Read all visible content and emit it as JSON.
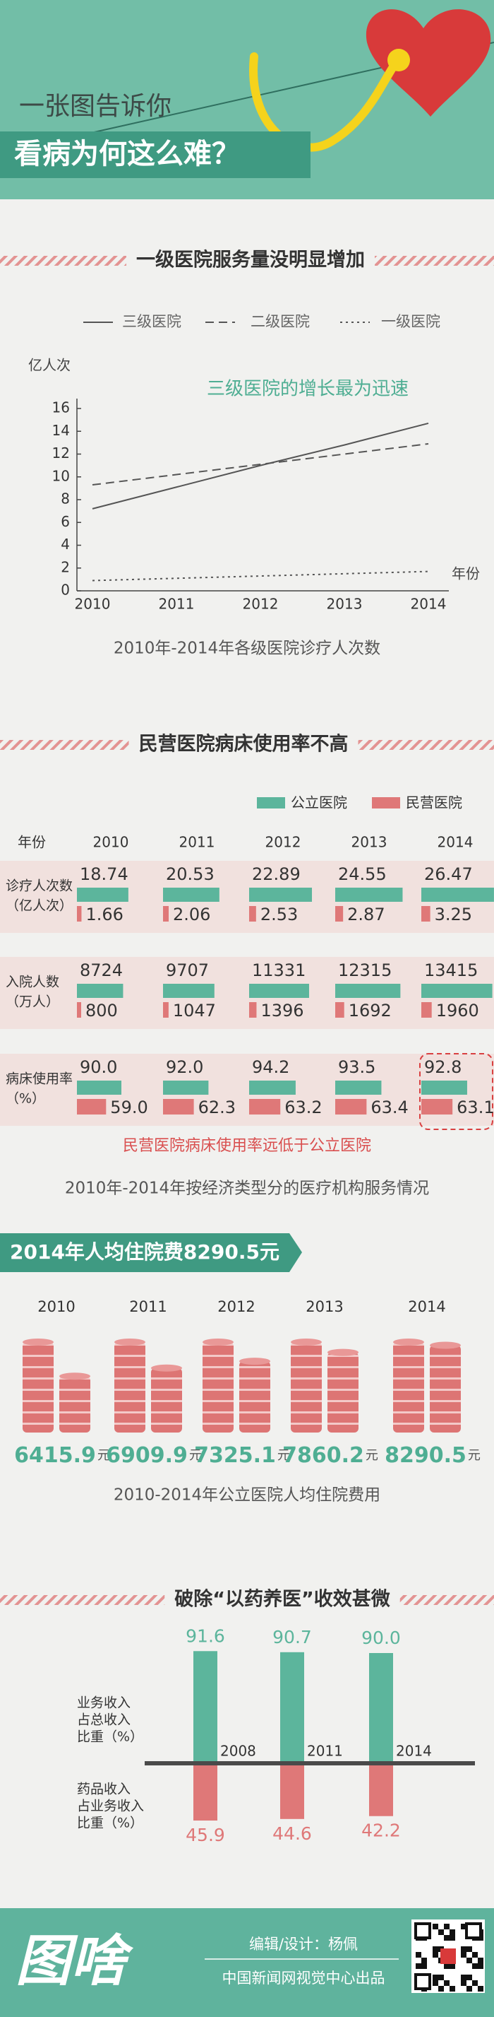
{
  "header": {
    "kicker": "一张图告诉你",
    "title": "看病为何这么难？"
  },
  "chart_data": [
    {
      "type": "line",
      "title": "一级医院服务量没明显增加",
      "y_label": "亿人次",
      "x_label": "年份",
      "annotation": "三级医院的增长最为迅速",
      "caption": "2010年-2014年各级医院诊疗人次数",
      "categories": [
        "2010",
        "2011",
        "2012",
        "2013",
        "2014"
      ],
      "series": [
        {
          "name": "三级医院",
          "color": "#555555",
          "dash": "solid",
          "values": [
            7.2,
            9.1,
            11.0,
            12.8,
            14.7
          ]
        },
        {
          "name": "二级医院",
          "color": "#555555",
          "dash": "dashed",
          "values": [
            9.3,
            10.2,
            11.1,
            12.0,
            12.9
          ]
        },
        {
          "name": "一级医院",
          "color": "#555555",
          "dash": "dotted",
          "values": [
            0.9,
            1.1,
            1.3,
            1.5,
            1.7
          ]
        }
      ],
      "ylim": [
        0,
        16
      ],
      "yticks": [
        0,
        2,
        4,
        6,
        8,
        10,
        12,
        14,
        16
      ]
    },
    {
      "type": "bar-table",
      "title": "民营医院病床使用率不高",
      "header_label": "年份",
      "annotation": "民营医院病床使用率远低于公立医院",
      "caption": "2010年-2014年按经济类型分的医疗机构服务情况",
      "categories": [
        "2010",
        "2011",
        "2012",
        "2013",
        "2014"
      ],
      "series": [
        {
          "name": "公立医院",
          "color": "#5cb59c"
        },
        {
          "name": "民营医院",
          "color": "#df7878"
        }
      ],
      "rows": [
        {
          "label": [
            "诊疗人次数",
            "（亿人次）"
          ],
          "xlim": [
            0,
            27
          ],
          "values": [
            [
              18.74,
              20.53,
              22.89,
              24.55,
              26.47
            ],
            [
              1.66,
              2.06,
              2.53,
              2.87,
              3.25
            ]
          ]
        },
        {
          "label": [
            "入院人数",
            "（万人）"
          ],
          "xlim": [
            0,
            14000
          ],
          "values": [
            [
              8724,
              9707,
              11331,
              12315,
              13415
            ],
            [
              800,
              1047,
              1396,
              1692,
              1960
            ]
          ]
        },
        {
          "label": [
            "病床使用率",
            "（%）"
          ],
          "xlim": [
            0,
            150
          ],
          "values": [
            [
              90,
              92,
              94.2,
              93.5,
              92.8
            ],
            [
              59,
              62.3,
              63.2,
              63.4,
              63.1
            ]
          ],
          "value_labels": [
            [
              "90.0",
              "92.0",
              "94.2",
              "93.5",
              "92.8"
            ],
            [
              "59.0",
              "62.3",
              "63.2",
              "63.4",
              "63.1"
            ]
          ]
        }
      ]
    },
    {
      "type": "pictogram",
      "title": "2014年人均住院费8290.5元",
      "caption": "2010-2014年公立医院人均住院费用",
      "categories": [
        "2010",
        "2011",
        "2012",
        "2013",
        "2014"
      ],
      "values": [
        6415.9,
        6909.9,
        7325.1,
        7860.2,
        8290.5
      ],
      "unit": "元",
      "color": "#dd7574",
      "value_color": "#4fae93",
      "ylim": [
        3000,
        9000
      ]
    },
    {
      "type": "diverging-bar",
      "title": "破除“以药养医”收效甚微",
      "categories": [
        "2008",
        "2011",
        "2014"
      ],
      "series": [
        {
          "name": [
            "业务收入",
            "占总收入",
            "比重（%）"
          ],
          "color": "#5cb59c",
          "values": [
            91.6,
            90.7,
            90
          ],
          "value_labels": [
            "91.6",
            "90.7",
            "90.0"
          ]
        },
        {
          "name": [
            "药品收入",
            "占业务收入",
            "比重（%）"
          ],
          "color": "#df7878",
          "values": [
            45.9,
            44.6,
            42.2
          ]
        }
      ],
      "ylim": [
        0,
        100
      ]
    }
  ],
  "footer": {
    "logo": "图啥",
    "credit": "编辑/设计：杨佩",
    "publisher": "中国新闻网视觉中心出品"
  }
}
